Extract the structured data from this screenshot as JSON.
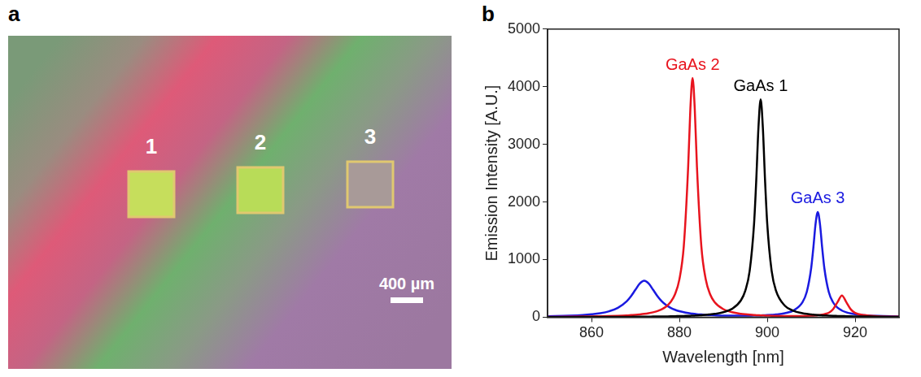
{
  "panel_labels": [
    "a",
    "b"
  ],
  "image": {
    "square_labels": [
      "1",
      "2",
      "3"
    ],
    "scale_bar": "400 µm"
  },
  "chart_data": {
    "type": "line",
    "x_label": "Wavelength [nm]",
    "y_label": "Emission Intensity [A.U.]",
    "x": [
      850,
      855,
      858,
      860,
      862,
      864,
      866,
      868,
      869,
      870,
      871,
      872,
      873,
      874,
      875,
      876,
      877,
      878,
      879,
      880,
      881,
      882,
      882.5,
      883,
      883.5,
      884,
      885,
      886,
      887,
      888,
      890,
      892,
      894,
      895,
      896,
      897,
      897.5,
      898,
      898.5,
      899,
      899.5,
      900,
      901,
      902,
      904,
      906,
      908,
      909,
      910,
      910.5,
      911,
      911.5,
      912,
      912.5,
      913,
      914,
      915,
      916,
      917,
      918,
      919,
      920,
      922,
      925,
      930
    ],
    "series": [
      {
        "name": "GaAs 1",
        "color": "#000000",
        "values": [
          3,
          3,
          4,
          4,
          5,
          5,
          6,
          7,
          7,
          8,
          8,
          9,
          10,
          11,
          12,
          13,
          14,
          15,
          17,
          19,
          21,
          23,
          25,
          26,
          28,
          30,
          35,
          40,
          48,
          57,
          86,
          145,
          291,
          458,
          804,
          1622,
          2377,
          3293,
          3780,
          3293,
          2377,
          1622,
          804,
          458,
          200,
          110,
          70,
          57,
          48,
          43,
          40,
          37,
          34,
          32,
          30,
          26,
          23,
          21,
          19,
          17,
          15,
          14,
          12,
          9,
          6
        ]
      },
      {
        "name": "GaAs 2",
        "color": "#e8141e",
        "values": [
          6,
          9,
          11,
          13,
          16,
          19,
          24,
          31,
          36,
          41,
          48,
          57,
          69,
          85,
          107,
          138,
          186,
          263,
          396,
          656,
          1231,
          2610,
          3615,
          4150,
          3615,
          2610,
          1231,
          657,
          397,
          264,
          139,
          86,
          59,
          50,
          43,
          38,
          35,
          33,
          31,
          30,
          28,
          27,
          25,
          23,
          21,
          20,
          21,
          23,
          26,
          28,
          31,
          34,
          39,
          45,
          53,
          76,
          140,
          262,
          376,
          262,
          138,
          74,
          36,
          17,
          8
        ]
      },
      {
        "name": "GaAs 3",
        "color": "#1a1ae0",
        "values": [
          17,
          27,
          38,
          51,
          70,
          103,
          162,
          275,
          365,
          477,
          584,
          632,
          584,
          478,
          366,
          276,
          210,
          163,
          129,
          104,
          86,
          72,
          66,
          61,
          57,
          53,
          47,
          41,
          37,
          33,
          28,
          28,
          27,
          27,
          28,
          29,
          30,
          31,
          32,
          33,
          34,
          36,
          41,
          47,
          69,
          117,
          257,
          440,
          852,
          1210,
          1619,
          1825,
          1619,
          1210,
          852,
          439,
          256,
          165,
          115,
          85,
          65,
          52,
          35,
          22,
          13
        ]
      }
    ],
    "xlim": [
      850,
      930
    ],
    "xticks": [
      860,
      880,
      900,
      920
    ],
    "ylim": [
      0,
      5000
    ],
    "yticks": [
      0,
      1000,
      2000,
      3000,
      4000,
      5000
    ],
    "grid": false
  }
}
